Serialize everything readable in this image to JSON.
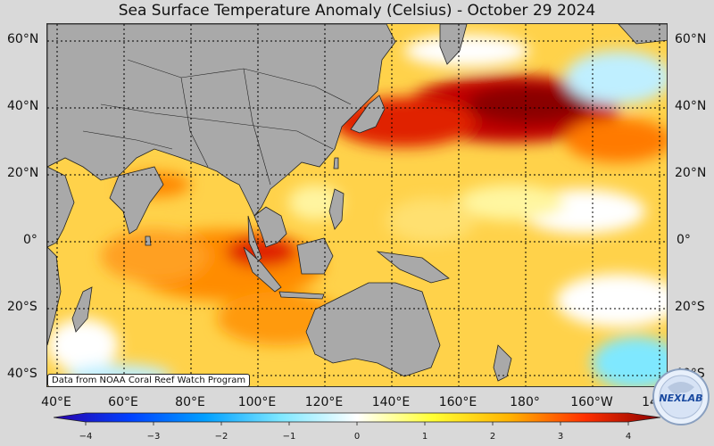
{
  "title": "Sea Surface Temperature Anomaly (Celsius) - October 29 2024",
  "credit": "Data from NOAA Coral Reef Watch Program",
  "logo_text": "NEXLAB",
  "lat_labels": [
    "60°N",
    "40°N",
    "20°N",
    "0°",
    "20°S",
    "40°S"
  ],
  "lon_labels": [
    "40°E",
    "60°E",
    "80°E",
    "100°E",
    "120°E",
    "140°E",
    "160°E",
    "180°",
    "160°W",
    "14"
  ],
  "colorbar": {
    "ticks": [
      "−4",
      "−3",
      "−2",
      "−1",
      "0",
      "1",
      "2",
      "3",
      "4"
    ],
    "colors": [
      "#2b00a8",
      "#0040ff",
      "#00a0ff",
      "#7fe8ff",
      "#ffffff",
      "#ffff33",
      "#ffb400",
      "#ff3000",
      "#8a0000"
    ]
  },
  "colors": {
    "land": "#a9a9a9",
    "ocean_base": "#ffd24a",
    "hot": "#d00000",
    "very_hot": "#8a0000",
    "cool": "#bfefff",
    "neutral": "#ffffff"
  }
}
